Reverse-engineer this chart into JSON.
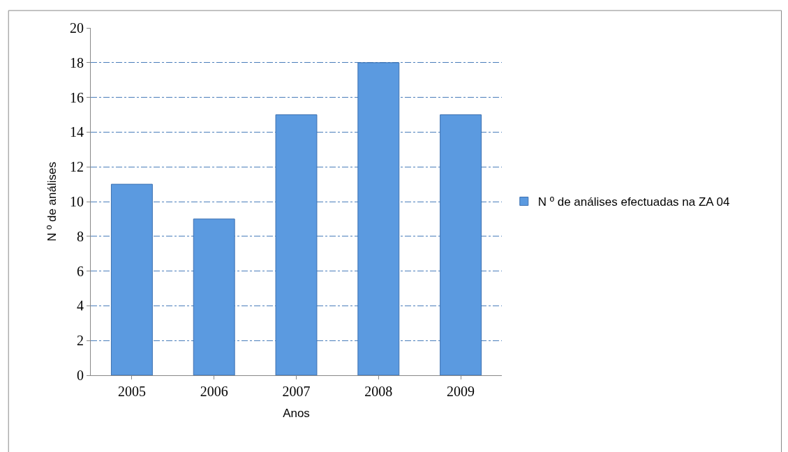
{
  "chart_data": {
    "type": "bar",
    "xlabel": "Anos",
    "ylabel": "N º de análises",
    "categories": [
      "2005",
      "2006",
      "2007",
      "2008",
      "2009"
    ],
    "series": [
      {
        "name": "N º de análises efectuadas na ZA 04",
        "color": "#5b9ae0",
        "values": [
          11,
          9,
          15,
          18,
          15
        ]
      }
    ],
    "ylim": [
      0,
      20
    ],
    "yticks": [
      0,
      2,
      4,
      6,
      8,
      10,
      12,
      14,
      16,
      18,
      20
    ],
    "grid": "y",
    "legend": "right"
  }
}
